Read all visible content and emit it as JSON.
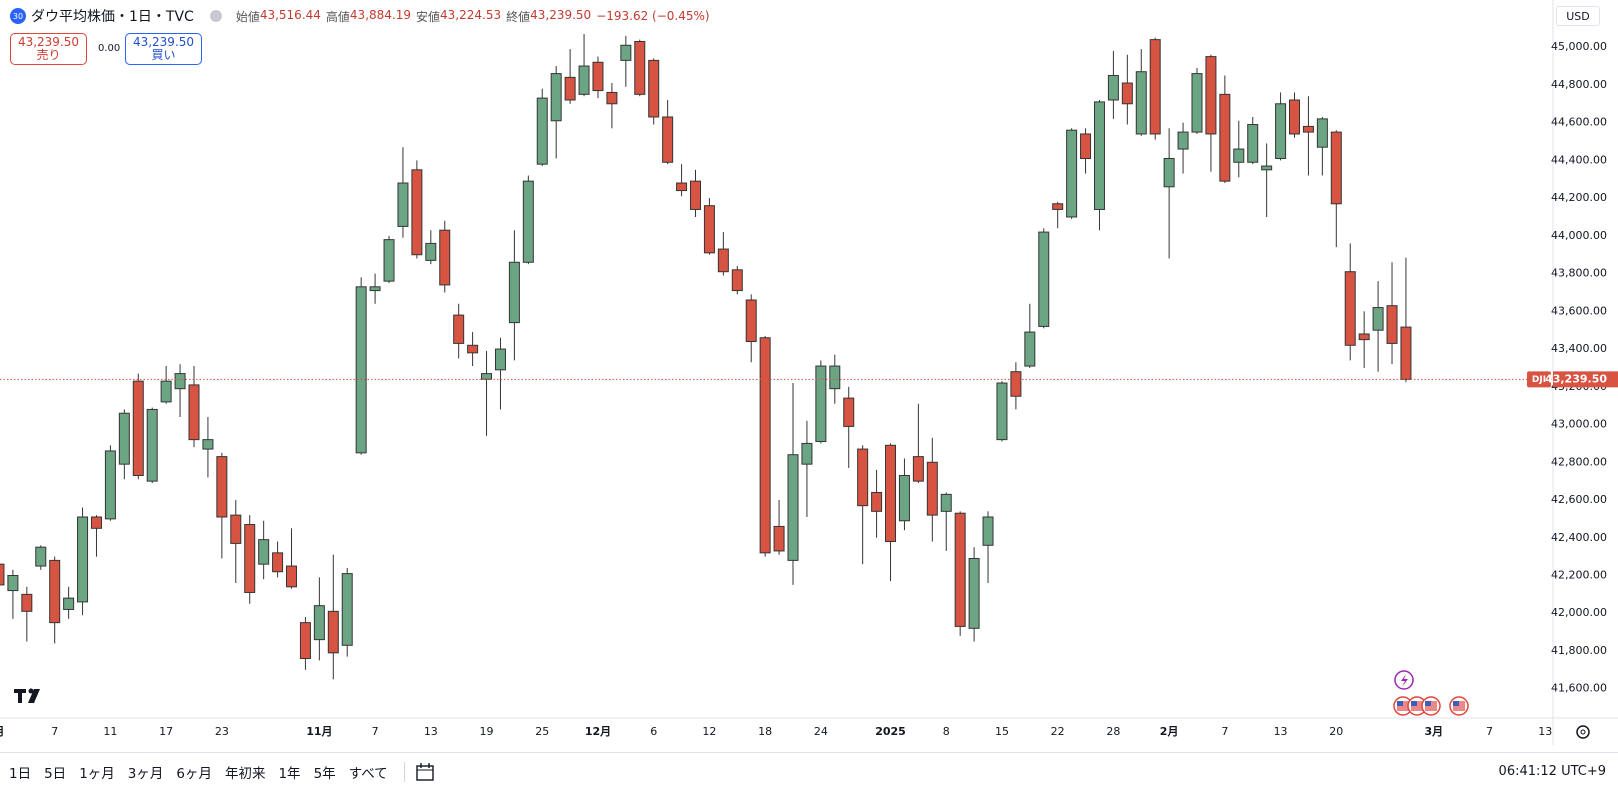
{
  "header": {
    "badge": "30",
    "title": "ダウ平均株価・1日・TVC",
    "legend": [
      {
        "label": "始値",
        "value": "43,516.44"
      },
      {
        "label": "高値",
        "value": "43,884.19"
      },
      {
        "label": "安値",
        "value": "43,224.53"
      },
      {
        "label": "終値",
        "value": "43,239.50"
      }
    ],
    "change": "−193.62 (−0.45%)",
    "currency": "USD"
  },
  "trade_panel": {
    "sell_price": "43,239.50",
    "sell_label": "売り",
    "spread": "0.00",
    "buy_price": "43,239.50",
    "buy_label": "買い"
  },
  "toolbar": {
    "ranges": [
      "1日",
      "5日",
      "1ヶ月",
      "3ヶ月",
      "6ヶ月",
      "年初来",
      "1年",
      "5年",
      "すべて"
    ],
    "clock": "06:41:12 UTC+9"
  },
  "chart_data": {
    "type": "candlestick",
    "categories": [
      "月",
      null,
      null,
      null,
      "7",
      null,
      null,
      null,
      "11",
      null,
      null,
      null,
      "17",
      null,
      null,
      null,
      "23",
      null,
      null,
      null,
      null,
      null,
      null,
      "11月",
      null,
      null,
      null,
      "7",
      null,
      null,
      null,
      "13",
      null,
      null,
      null,
      "19",
      null,
      null,
      null,
      "25",
      null,
      null,
      null,
      "12月",
      null,
      null,
      null,
      "6",
      null,
      null,
      null,
      "12",
      null,
      null,
      null,
      "18",
      null,
      null,
      null,
      "24",
      null,
      null,
      null,
      null,
      "2025",
      null,
      null,
      null,
      "8",
      null,
      null,
      null,
      "15",
      null,
      null,
      null,
      "22",
      null,
      null,
      null,
      "28",
      null,
      null,
      null,
      "2月",
      null,
      null,
      null,
      "7",
      null,
      null,
      null,
      "13",
      null,
      null,
      null,
      "20",
      null,
      null,
      null,
      null,
      null,
      null,
      "3月",
      null,
      null,
      null,
      "7",
      null,
      null,
      null,
      "13"
    ],
    "open": [
      42260,
      42120,
      42100,
      42250,
      42280,
      42020,
      42060,
      42510,
      42500,
      42790,
      43230,
      42700,
      43120,
      43190,
      43210,
      42870,
      42830,
      42520,
      42470,
      42260,
      42320,
      42250,
      41950,
      41860,
      42010,
      41830,
      42850,
      43710,
      43760,
      44050,
      44350,
      43870,
      44030,
      43580,
      43420,
      43240,
      43290,
      43540,
      43860,
      44380,
      44610,
      44840,
      44750,
      44920,
      44760,
      44930,
      45030,
      44930,
      44630,
      44280,
      44290,
      44160,
      43930,
      43820,
      43660,
      43460,
      42460,
      42280,
      42790,
      42910,
      43190,
      43140,
      42870,
      42640,
      42890,
      42490,
      42830,
      42800,
      42540,
      42530,
      41920,
      42360,
      42920,
      43280,
      43310,
      43520,
      44170,
      44100,
      44540,
      44140,
      44720,
      44810,
      44540,
      45040,
      44260,
      44460,
      44550,
      44950,
      44750,
      44390,
      44390,
      44350,
      44410,
      44720,
      44580,
      44470,
      44550,
      43810,
      43480,
      43500,
      43630,
      43516.44,
      null,
      null,
      null,
      null,
      null,
      null,
      null,
      null,
      null,
      null
    ],
    "high": [
      42270,
      42230,
      42140,
      42360,
      42300,
      42140,
      42560,
      42520,
      42890,
      43080,
      43270,
      43090,
      43310,
      43320,
      43310,
      43040,
      42850,
      42600,
      42520,
      42490,
      42380,
      42450,
      41980,
      42190,
      42310,
      42240,
      43780,
      43800,
      44000,
      44470,
      44400,
      44030,
      44080,
      43640,
      43490,
      43390,
      43460,
      44030,
      44320,
      44780,
      44900,
      44990,
      45070,
      44950,
      44810,
      45060,
      45040,
      44940,
      44720,
      44380,
      44350,
      44200,
      44020,
      43840,
      43690,
      43470,
      42600,
      43220,
      43020,
      43340,
      43370,
      43200,
      42890,
      42760,
      42900,
      42820,
      43110,
      42930,
      42640,
      42540,
      42350,
      42540,
      43230,
      43330,
      43640,
      44040,
      44180,
      44570,
      44570,
      44720,
      44980,
      44960,
      44990,
      45050,
      44570,
      44600,
      44890,
      44960,
      44850,
      44610,
      44630,
      44490,
      44760,
      44760,
      44740,
      44630,
      44560,
      43960,
      43600,
      43760,
      43860,
      43884.19,
      null,
      null,
      null,
      null,
      null,
      null,
      null,
      null,
      null,
      null
    ],
    "low": [
      42110,
      41970,
      41850,
      42230,
      41840,
      41970,
      41990,
      42300,
      42490,
      42710,
      42710,
      42690,
      43110,
      43040,
      42880,
      42720,
      42290,
      42160,
      42050,
      42180,
      42190,
      42130,
      41700,
      41750,
      41650,
      41770,
      42840,
      43640,
      43750,
      43990,
      43880,
      43850,
      43700,
      43350,
      43310,
      42940,
      43080,
      43340,
      43850,
      44370,
      44410,
      44700,
      44740,
      44730,
      44570,
      44790,
      44740,
      44590,
      44380,
      44210,
      44100,
      43900,
      43790,
      43690,
      43330,
      42300,
      42310,
      42150,
      42510,
      42900,
      43110,
      42770,
      42260,
      42400,
      42170,
      42440,
      42690,
      42380,
      42330,
      41880,
      41850,
      42160,
      42910,
      43080,
      43300,
      43510,
      44040,
      44090,
      44330,
      44030,
      44620,
      44590,
      44530,
      44510,
      43880,
      44330,
      44540,
      44340,
      44280,
      44310,
      44380,
      44100,
      44400,
      44520,
      44320,
      44320,
      43940,
      43340,
      43300,
      43280,
      43320,
      43224.53,
      null,
      null,
      null,
      null,
      null,
      null,
      null,
      null,
      null,
      null
    ],
    "close": [
      42150,
      42200,
      42010,
      42350,
      41950,
      42080,
      42510,
      42450,
      42860,
      43060,
      42730,
      43080,
      43230,
      43270,
      42920,
      42920,
      42510,
      42370,
      42110,
      42390,
      42220,
      42140,
      41760,
      42040,
      41790,
      42210,
      43730,
      43730,
      43980,
      44280,
      43900,
      43960,
      43740,
      43430,
      43380,
      43270,
      43400,
      43860,
      44290,
      44730,
      44860,
      44720,
      44900,
      44770,
      44700,
      45010,
      44750,
      44630,
      44390,
      44240,
      44140,
      43910,
      43810,
      43710,
      43440,
      42320,
      42330,
      42840,
      42900,
      43310,
      43310,
      42990,
      42570,
      42540,
      42380,
      42730,
      42700,
      42520,
      42630,
      41930,
      42290,
      42510,
      43220,
      43150,
      43490,
      44020,
      44140,
      44560,
      44410,
      44710,
      44850,
      44700,
      44870,
      44540,
      44410,
      44550,
      44860,
      44540,
      44290,
      44460,
      44590,
      44370,
      44700,
      44540,
      44550,
      44620,
      44170,
      43420,
      43450,
      43620,
      43430,
      43239.5,
      null,
      null,
      null,
      null,
      null,
      null,
      null,
      null,
      null,
      null
    ],
    "colors": {
      "up": "#6ba583",
      "down": "#d75442",
      "wick": "#353535"
    },
    "ylim": [
      41450,
      45250
    ],
    "yticks": [
      {
        "value": 41600,
        "label": "41,600.00"
      },
      {
        "value": 41800,
        "label": "41,800.00"
      },
      {
        "value": 42000,
        "label": "42,000.00"
      },
      {
        "value": 42200,
        "label": "42,200.00"
      },
      {
        "value": 42400,
        "label": "42,400.00"
      },
      {
        "value": 42600,
        "label": "42,600.00"
      },
      {
        "value": 42800,
        "label": "42,800.00"
      },
      {
        "value": 43000,
        "label": "43,000.00"
      },
      {
        "value": 43200,
        "label": "43,200.00"
      },
      {
        "value": 43400,
        "label": "43,400.00"
      },
      {
        "value": 43600,
        "label": "43,600.00"
      },
      {
        "value": 43800,
        "label": "43,800.00"
      },
      {
        "value": 44000,
        "label": "44,000.00"
      },
      {
        "value": 44200,
        "label": "44,200.00"
      },
      {
        "value": 44400,
        "label": "44,400.00"
      },
      {
        "value": 44600,
        "label": "44,600.00"
      },
      {
        "value": 44800,
        "label": "44,800.00"
      },
      {
        "value": 45000,
        "label": "45,000.00"
      }
    ],
    "grid": false,
    "last_price": {
      "symbol": "DJI",
      "label": "43,239.50",
      "color": "#d75442"
    }
  }
}
